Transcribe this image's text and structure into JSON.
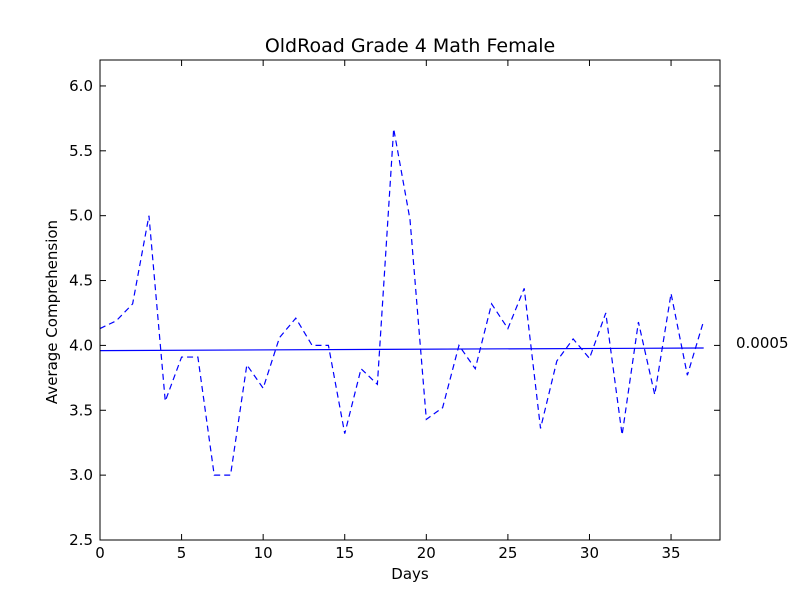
{
  "chart_data": {
    "type": "line",
    "title": "OldRoad Grade 4 Math Female",
    "xlabel": "Days",
    "ylabel": "Average Comprehension",
    "xlim": [
      0,
      38
    ],
    "ylim": [
      2.5,
      6.2
    ],
    "xticks": [
      0,
      5,
      10,
      15,
      20,
      25,
      30,
      35
    ],
    "yticks": [
      2.5,
      3.0,
      3.5,
      4.0,
      4.5,
      5.0,
      5.5,
      6.0
    ],
    "xtick_labels": [
      "0",
      "5",
      "10",
      "15",
      "20",
      "25",
      "30",
      "35"
    ],
    "ytick_labels": [
      "2.5",
      "3.0",
      "3.5",
      "4.0",
      "4.5",
      "5.0",
      "5.5",
      "6.0"
    ],
    "grid": false,
    "series": [
      {
        "style": "dashed",
        "color": "#0000ff",
        "x": [
          0,
          1,
          2,
          3,
          4,
          5,
          6,
          7,
          8,
          9,
          10,
          11,
          12,
          13,
          14,
          15,
          16,
          17,
          18,
          19,
          20,
          21,
          22,
          23,
          24,
          25,
          26,
          27,
          28,
          29,
          30,
          31,
          32,
          33,
          34,
          35,
          36,
          37
        ],
        "y": [
          4.13,
          4.19,
          4.32,
          5.0,
          3.57,
          3.91,
          3.91,
          3.0,
          3.0,
          3.85,
          3.67,
          4.06,
          4.21,
          4.0,
          4.0,
          3.32,
          3.82,
          3.7,
          5.67,
          4.97,
          3.43,
          3.52,
          4.0,
          3.82,
          4.32,
          4.13,
          4.44,
          3.36,
          3.88,
          4.05,
          3.9,
          4.25,
          3.31,
          4.18,
          3.62,
          4.4,
          3.77,
          4.19
        ]
      },
      {
        "style": "solid",
        "color": "#0000ff",
        "x": [
          0,
          37
        ],
        "y": [
          3.96,
          3.98
        ]
      }
    ],
    "annotation": "0.0005"
  }
}
